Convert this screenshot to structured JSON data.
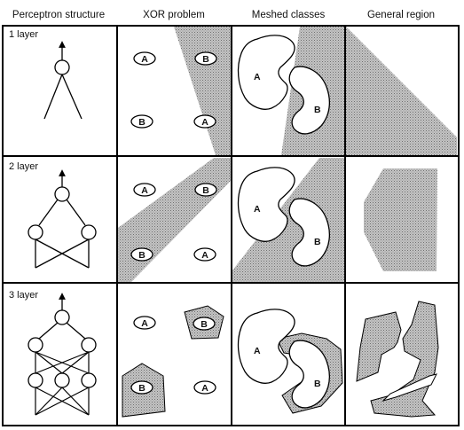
{
  "headers": [
    "Perceptron structure",
    "XOR problem",
    "Meshed classes",
    "General region"
  ],
  "rows": [
    {
      "label": "1 layer"
    },
    {
      "label": "2 layer"
    },
    {
      "label": "3 layer"
    }
  ],
  "class_labels": {
    "a": "A",
    "b": "B"
  },
  "colors": {
    "border": "#000000",
    "shade": "#a9a9a9",
    "background": "#ffffff"
  }
}
